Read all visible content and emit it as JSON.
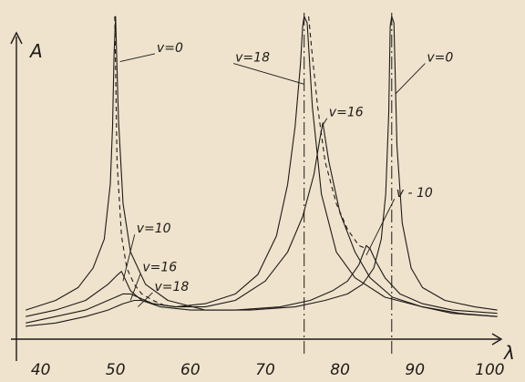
{
  "chart_data": {
    "type": "line",
    "title": "",
    "xlabel": "λ",
    "ylabel": "A",
    "xlim": [
      37,
      103
    ],
    "ylim": [
      0,
      1
    ],
    "grid": false,
    "legend": "none",
    "x_ticks": [
      40,
      50,
      60,
      70,
      80,
      90,
      100
    ],
    "x_tick_labels": [
      "40",
      "50",
      "60",
      "70",
      "80",
      "90",
      "100"
    ],
    "colors": {
      "ink": "#1e1a17",
      "paper": "#efe3cd"
    },
    "annotations": [
      {
        "text": "v=0",
        "x": 55.5,
        "y": 0.89,
        "points_to": [
          50.6,
          0.86
        ]
      },
      {
        "text": "v=10",
        "x": 52.8,
        "y": 0.33,
        "points_to": [
          51.0,
          0.18
        ]
      },
      {
        "text": "v=16",
        "x": 53.6,
        "y": 0.21,
        "points_to": [
          52.0,
          0.12
        ]
      },
      {
        "text": "v=18",
        "x": 55.2,
        "y": 0.15,
        "points_to": [
          53.0,
          0.1
        ]
      },
      {
        "text": "v=18",
        "x": 66.0,
        "y": 0.86,
        "points_to": [
          75.2,
          0.79
        ]
      },
      {
        "text": "v=16",
        "x": 78.5,
        "y": 0.69,
        "points_to": [
          77.6,
          0.66
        ]
      },
      {
        "text": "v=0",
        "x": 91.6,
        "y": 0.86,
        "points_to": [
          87.4,
          0.76
        ]
      },
      {
        "text": "v - 10",
        "x": 87.5,
        "y": 0.44,
        "points_to": [
          83.5,
          0.26
        ]
      }
    ],
    "asymptotes": [
      75.2,
      86.9
    ],
    "series": [
      {
        "name": "v=0",
        "style": "solid",
        "x": [
          38,
          42,
          45,
          47,
          48.5,
          49.3,
          49.6,
          49.8,
          50.0,
          50.4,
          51,
          52,
          54,
          57,
          62,
          68,
          74,
          78,
          81,
          83,
          84.5,
          85.5,
          86.1,
          86.5,
          86.7,
          86.9,
          87.2,
          87.6,
          88.3,
          89.5,
          91,
          94,
          98,
          101
        ],
        "y": [
          0.09,
          0.12,
          0.16,
          0.22,
          0.31,
          0.48,
          0.66,
          0.88,
          1.0,
          0.68,
          0.42,
          0.27,
          0.17,
          0.12,
          0.09,
          0.09,
          0.1,
          0.12,
          0.14,
          0.17,
          0.22,
          0.31,
          0.45,
          0.7,
          0.97,
          1.0,
          0.98,
          0.6,
          0.36,
          0.22,
          0.16,
          0.12,
          0.1,
          0.09
        ]
      },
      {
        "name": "v=10",
        "style": "solid",
        "x": [
          38,
          42,
          46,
          49,
          50.3,
          50.8,
          51.2,
          52,
          53.5,
          56,
          60,
          66,
          72,
          76,
          79,
          81,
          82.5,
          83.5,
          84,
          84.8,
          86,
          88,
          91,
          95,
          101
        ],
        "y": [
          0.07,
          0.09,
          0.12,
          0.17,
          0.2,
          0.21,
          0.19,
          0.15,
          0.12,
          0.1,
          0.09,
          0.09,
          0.1,
          0.12,
          0.15,
          0.18,
          0.23,
          0.29,
          0.28,
          0.24,
          0.19,
          0.14,
          0.11,
          0.09,
          0.08
        ]
      },
      {
        "name": "v=16",
        "style": "solid",
        "x": [
          38,
          42,
          46,
          49,
          51,
          52,
          53,
          55,
          58,
          62,
          66,
          70,
          73,
          75,
          76.5,
          77.3,
          77.7,
          78.5,
          80,
          82,
          84,
          87,
          91,
          95,
          101
        ],
        "y": [
          0.05,
          0.07,
          0.09,
          0.12,
          0.14,
          0.14,
          0.13,
          0.11,
          0.1,
          0.1,
          0.12,
          0.18,
          0.27,
          0.38,
          0.51,
          0.62,
          0.67,
          0.55,
          0.39,
          0.27,
          0.19,
          0.13,
          0.1,
          0.08,
          0.07
        ]
      },
      {
        "name": "v=18",
        "style": "solid",
        "x": [
          38,
          42,
          46,
          49,
          51,
          52.5,
          53.4,
          55,
          58,
          62,
          66,
          69,
          71.5,
          73,
          74,
          74.7,
          75.0,
          75.2,
          75.6,
          76.3,
          77.5,
          79.5,
          82,
          86,
          91,
          96,
          101
        ],
        "y": [
          0.04,
          0.05,
          0.07,
          0.09,
          0.11,
          0.12,
          0.12,
          0.11,
          0.1,
          0.11,
          0.14,
          0.2,
          0.32,
          0.48,
          0.66,
          0.85,
          0.97,
          1.0,
          0.98,
          0.72,
          0.45,
          0.27,
          0.19,
          0.13,
          0.1,
          0.08,
          0.07
        ]
      },
      {
        "name": "dashed",
        "style": "dashed",
        "x": [
          49.9,
          50.2,
          50.8,
          51.5,
          52.5,
          53.5,
          55,
          57
        ],
        "y": [
          1.0,
          0.55,
          0.32,
          0.22,
          0.17,
          0.14,
          0.12,
          0.1
        ]
      },
      {
        "name": "dashed",
        "style": "dashed",
        "x": [
          75.8,
          76.2,
          77,
          78,
          79.5,
          81,
          82.5,
          83.5
        ],
        "y": [
          1.0,
          0.9,
          0.72,
          0.55,
          0.42,
          0.34,
          0.29,
          0.28
        ]
      }
    ]
  }
}
